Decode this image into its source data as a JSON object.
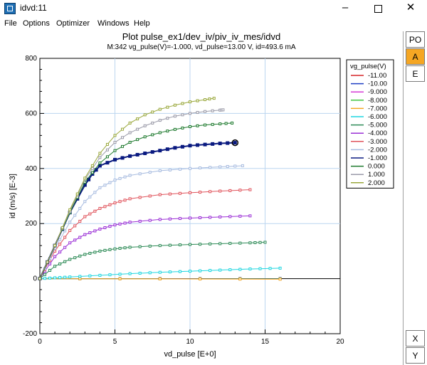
{
  "window": {
    "title": "idvd:11",
    "minimize_icon": "minimize-icon",
    "maximize_icon": "maximize-icon",
    "close_icon": "close-icon"
  },
  "menu": [
    "File",
    "Options",
    "Optimizer",
    "Windows",
    "Help"
  ],
  "plot": {
    "title": "Plot pulse_ex1/dev_iv/piv_iv_mes/idvd",
    "subtitle": "M:342 vg_pulse(V)=-1.000, vd_pulse=13.00  V, id=493.6  mA"
  },
  "side_buttons": {
    "top": [
      "PO",
      "A",
      "E"
    ],
    "bottom": [
      "X",
      "Y"
    ],
    "active": "A"
  },
  "chart_data": {
    "type": "line",
    "xlabel": "vd_pulse  [E+0]",
    "ylabel": "id  (m/s)  [E-3]",
    "xlim": [
      0,
      20
    ],
    "ylim": [
      -200,
      800
    ],
    "xticks": [
      0,
      5,
      10,
      15,
      20
    ],
    "yticks": [
      -200,
      0,
      200,
      400,
      600,
      800
    ],
    "grid": true,
    "legend_title": "vg_pulse(V)",
    "legend_position": "right",
    "marker": {
      "series": "-1.000",
      "x": 13.0,
      "y": 493.6
    },
    "series": [
      {
        "name": "-11.00",
        "color": "#d62728",
        "x": [
          0,
          16
        ],
        "y": [
          0,
          0
        ]
      },
      {
        "name": "-10.00",
        "color": "#1f3fc4",
        "x": [
          0,
          16
        ],
        "y": [
          0,
          0
        ]
      },
      {
        "name": "-9.000",
        "color": "#d63ad6",
        "x": [
          0,
          16
        ],
        "y": [
          0,
          -1
        ]
      },
      {
        "name": "-8.000",
        "color": "#3fc43f",
        "x": [
          0,
          16
        ],
        "y": [
          0,
          -1
        ]
      },
      {
        "name": "-7.000",
        "color": "#f5a623",
        "x": [
          0,
          16
        ],
        "y": [
          0,
          -2
        ]
      },
      {
        "name": "-6.000",
        "color": "#1fd6e0",
        "x": [
          0,
          1,
          2,
          4,
          6,
          8,
          10,
          12,
          14,
          16
        ],
        "y": [
          0,
          3,
          6,
          12,
          18,
          23,
          27,
          31,
          35,
          38
        ]
      },
      {
        "name": "-5.000",
        "color": "#2e8b57",
        "x": [
          0,
          1,
          2,
          3,
          4,
          5,
          6,
          8,
          10,
          12,
          14,
          15
        ],
        "y": [
          0,
          45,
          70,
          88,
          100,
          108,
          114,
          120,
          124,
          127,
          130,
          132
        ]
      },
      {
        "name": "-4.000",
        "color": "#9b30d6",
        "x": [
          0,
          1,
          2,
          3,
          4,
          5,
          6,
          8,
          10,
          12,
          14
        ],
        "y": [
          0,
          80,
          130,
          160,
          180,
          195,
          205,
          215,
          220,
          224,
          228
        ]
      },
      {
        "name": "-3.000",
        "color": "#e0545c",
        "x": [
          0,
          1,
          2,
          3,
          4,
          5,
          6,
          8,
          10,
          12,
          14
        ],
        "y": [
          0,
          100,
          175,
          225,
          255,
          275,
          290,
          305,
          312,
          318,
          323
        ]
      },
      {
        "name": "-2.000",
        "color": "#a8bce0",
        "x": [
          0,
          1,
          2,
          3,
          4,
          5,
          6,
          8,
          10,
          12,
          13.5
        ],
        "y": [
          0,
          110,
          205,
          280,
          330,
          358,
          375,
          392,
          400,
          406,
          410
        ]
      },
      {
        "name": "-1.000",
        "color": "#0a1a80",
        "x": [
          0,
          1,
          2,
          3,
          3.5,
          4,
          5,
          6,
          7,
          8,
          9,
          10,
          11,
          12,
          13
        ],
        "y": [
          0,
          120,
          240,
          340,
          380,
          410,
          432,
          445,
          455,
          465,
          475,
          483,
          487,
          491,
          493.6
        ]
      },
      {
        "name": "0.000",
        "color": "#1e7a2e",
        "x": [
          0,
          1,
          2,
          3,
          4,
          5,
          6,
          7,
          8,
          9,
          10,
          11,
          12,
          12.8
        ],
        "y": [
          0,
          120,
          240,
          350,
          420,
          465,
          495,
          515,
          530,
          542,
          552,
          558,
          562,
          565
        ]
      },
      {
        "name": "1.000",
        "color": "#9a9aa8",
        "x": [
          0,
          1,
          2,
          3,
          4,
          5,
          6,
          7,
          8,
          9,
          10,
          11,
          12,
          12.2
        ],
        "y": [
          0,
          120,
          245,
          360,
          440,
          495,
          530,
          555,
          575,
          590,
          600,
          607,
          612,
          613
        ]
      },
      {
        "name": "2.000",
        "color": "#9aa83c",
        "x": [
          0,
          1,
          2,
          3,
          4,
          5,
          6,
          7,
          8,
          9,
          10,
          11,
          11.6
        ],
        "y": [
          0,
          120,
          250,
          365,
          455,
          520,
          565,
          595,
          615,
          630,
          642,
          650,
          655
        ]
      }
    ]
  }
}
